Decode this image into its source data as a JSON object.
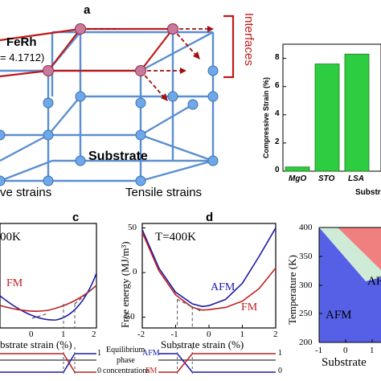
{
  "panels": {
    "a": {
      "letter": "a",
      "material": "FeRh",
      "lattice_fragment": "= 4.1712)",
      "interfaces_label": "Interfaces",
      "substrate_label": "Substrate",
      "left_caption": "ve strains",
      "right_caption": "Tensile strains"
    },
    "b": {
      "ylabel": "Compressive Strain (%)",
      "xlabel_fragment": "Substr",
      "y_ticks": [
        "0",
        "2",
        "4",
        "6",
        "8"
      ]
    },
    "c": {
      "letter": "c",
      "temp_fragment": "00K",
      "fm_label": "FM",
      "xlabel_fragment": "bstrate strain (%)",
      "x_ticks": [
        "0",
        "1",
        "2"
      ],
      "phase_ticks": [
        "1",
        "0"
      ],
      "phase_label_lines": [
        "Equilibrium",
        "phase",
        "concentrations"
      ]
    },
    "d": {
      "letter": "d",
      "temp_label": "T=400K",
      "ylabel": "Free energy (MJ/m³)",
      "afm_label": "AFM",
      "fm_label": "FM",
      "xlabel": "Substrate strain (%)",
      "x_ticks": [
        "-2",
        "-1",
        "0",
        "1",
        "2"
      ],
      "y_ticks": [
        "50",
        "0",
        "-50"
      ],
      "phase_afm": "AFM",
      "phase_fm": "FM",
      "phase_ticks": [
        "1",
        "0"
      ]
    },
    "e": {
      "ylabel": "Temperature (K)",
      "xlabel_fragment": "Substrate",
      "afm_label": "AFM",
      "afm_fragment": "AF",
      "x_ticks": [
        "-1",
        "0",
        "1"
      ],
      "y_ticks": [
        "400",
        "350",
        "300",
        "250",
        "200"
      ],
      "colors": {
        "afm": "#5560e6",
        "coexist": "#cdebd7",
        "fm": "#f08080"
      }
    }
  },
  "chart_data": [
    {
      "type": "bar",
      "categories": [
        "MgO",
        "STO",
        "LSA"
      ],
      "values": [
        0.3,
        7.6,
        8.3
      ],
      "ylabel": "Compressive Strain (%)",
      "ylim": [
        0,
        9
      ],
      "colors": {
        "bar": "#2ecc40"
      }
    },
    {
      "type": "line",
      "title": "T=400K",
      "xlabel": "Substrate strain (%)",
      "ylabel": "Free energy (MJ/m³)",
      "xlim": [
        -2,
        2
      ],
      "ylim": [
        -62,
        55
      ],
      "x": [
        -2,
        -1.5,
        -1,
        -0.5,
        -0.2,
        0,
        0.5,
        1,
        1.5,
        2
      ],
      "series": [
        {
          "name": "AFM",
          "color": "#1a1aa8",
          "values": [
            48,
            5,
            -22,
            -35,
            -38,
            -37,
            -30,
            -12,
            18,
            50
          ]
        },
        {
          "name": "FM",
          "color": "#c02020",
          "values": [
            45,
            2,
            -25,
            -39,
            -42,
            -41.5,
            -39,
            -32,
            -18,
            5
          ]
        }
      ]
    }
  ]
}
